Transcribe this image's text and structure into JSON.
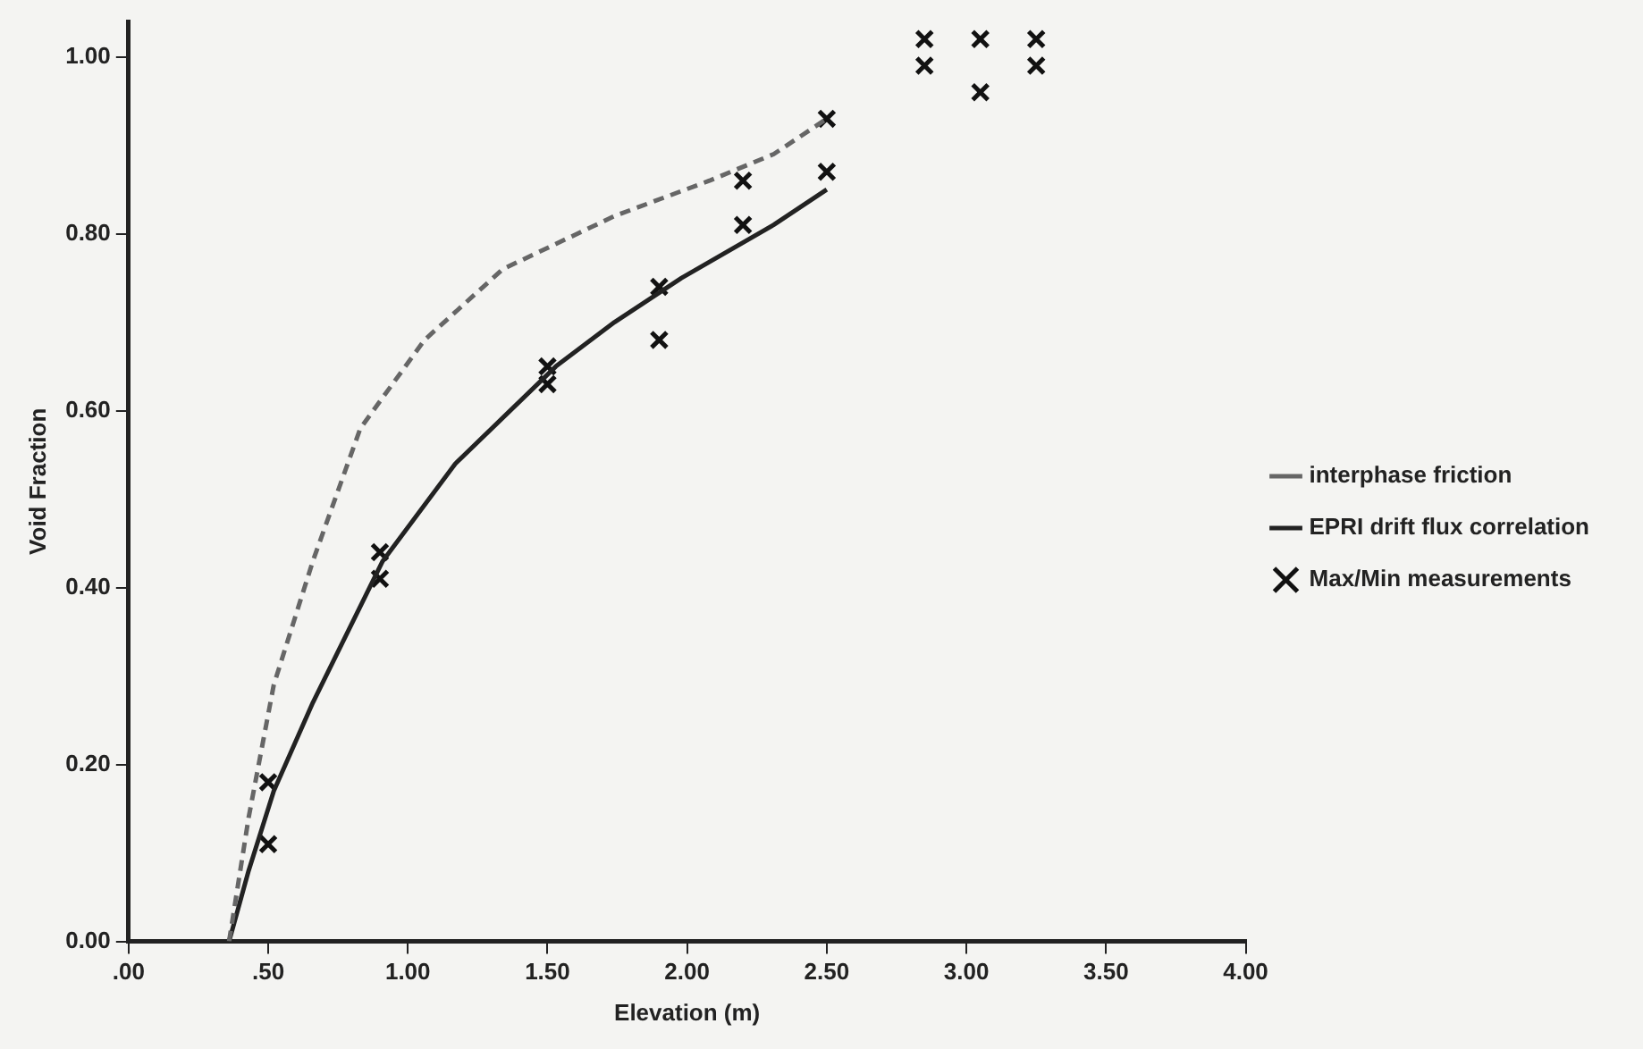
{
  "chart_data": {
    "type": "line",
    "xlabel": "Elevation (m)",
    "ylabel": "Void Fraction",
    "xlim": [
      0,
      4
    ],
    "xticks": [
      {
        "value": 0,
        "label": ".00"
      },
      {
        "value": 0.5,
        "label": ".50"
      },
      {
        "value": 1,
        "label": "1.00"
      },
      {
        "value": 1.5,
        "label": "1.50"
      },
      {
        "value": 2,
        "label": "2.00"
      },
      {
        "value": 2.5,
        "label": "2.50"
      },
      {
        "value": 3,
        "label": "3.00"
      },
      {
        "value": 3.5,
        "label": "3.50"
      },
      {
        "value": 4,
        "label": "4.00"
      }
    ],
    "ylim": [
      0,
      1.04
    ],
    "yticks": [
      {
        "value": 0,
        "label": "0.00"
      },
      {
        "value": 0.2,
        "label": "0.20"
      },
      {
        "value": 0.4,
        "label": "0.40"
      },
      {
        "value": 0.6,
        "label": "0.60"
      },
      {
        "value": 0.8,
        "label": "0.80"
      },
      {
        "value": 1,
        "label": "1.00"
      }
    ],
    "grid": false,
    "legend": "right",
    "series": [
      {
        "name": "interphase friction",
        "type": "line",
        "color": "#666666",
        "line_style": "dashed",
        "x": [
          0.36,
          0.43,
          0.52,
          0.66,
          0.83,
          1.06,
          1.34,
          1.74,
          2.08,
          2.31,
          2.5
        ],
        "values": [
          0,
          0.14,
          0.29,
          0.43,
          0.58,
          0.68,
          0.76,
          0.82,
          0.86,
          0.89,
          0.93
        ]
      },
      {
        "name": "EPRI drift flux correlation",
        "type": "line",
        "color": "#222222",
        "line_style": "solid",
        "x": [
          0.36,
          0.43,
          0.52,
          0.66,
          0.91,
          1.17,
          1.53,
          1.74,
          1.98,
          2.31,
          2.5
        ],
        "values": [
          0,
          0.08,
          0.17,
          0.27,
          0.43,
          0.54,
          0.65,
          0.7,
          0.75,
          0.81,
          0.85
        ]
      },
      {
        "name": "Max/Min measurements",
        "type": "scatter",
        "color": "#111111",
        "marker": "cross",
        "x": [
          0.5,
          0.5,
          0.9,
          0.9,
          1.5,
          1.5,
          1.9,
          1.9,
          2.2,
          2.2,
          2.5,
          2.5,
          2.85,
          2.85,
          3.05,
          3.05,
          3.25,
          3.25
        ],
        "values": [
          0.18,
          0.11,
          0.44,
          0.41,
          0.65,
          0.63,
          0.74,
          0.68,
          0.86,
          0.81,
          0.93,
          0.87,
          1.02,
          0.99,
          1.02,
          0.96,
          1.02,
          0.99
        ]
      }
    ]
  }
}
